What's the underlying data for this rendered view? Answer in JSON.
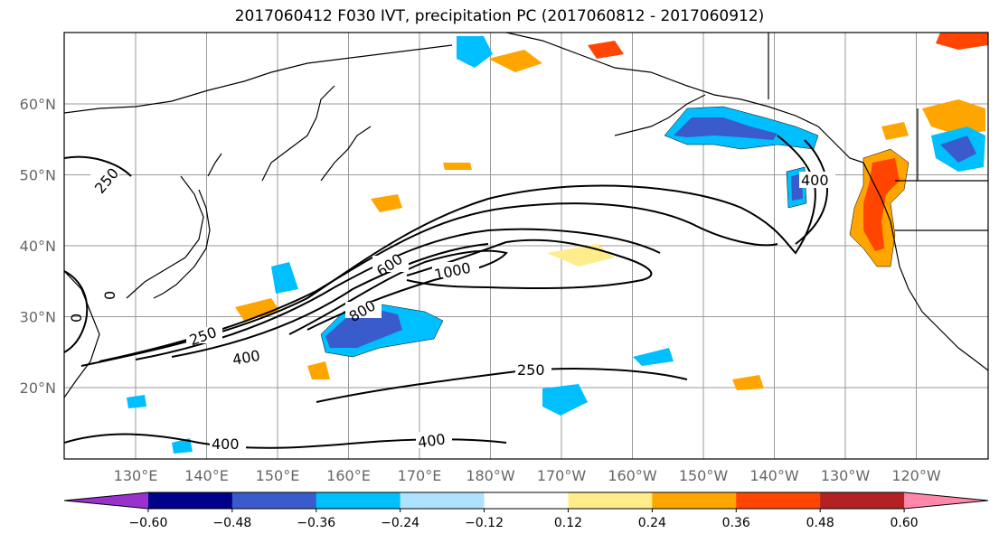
{
  "title": "2017060412 F030 IVT, precipitation PC (2017060812 - 2017060912)",
  "map": {
    "lon_labels": [
      "130°E",
      "140°E",
      "150°E",
      "160°E",
      "170°E",
      "180°W",
      "170°W",
      "160°W",
      "150°W",
      "140°W",
      "130°W",
      "120°W"
    ],
    "lat_labels": [
      "60°N",
      "50°N",
      "40°N",
      "30°N",
      "20°N"
    ]
  },
  "contours": {
    "labels": [
      "250",
      "400",
      "600",
      "800",
      "1000",
      "250",
      "400",
      "400",
      "400",
      "250",
      "0",
      "0"
    ]
  },
  "colorbar": {
    "ticks": [
      "−0.60",
      "−0.48",
      "−0.36",
      "−0.24",
      "−0.12",
      "0.12",
      "0.24",
      "0.36",
      "0.48",
      "0.60"
    ],
    "colors": [
      "#9932cc",
      "#00008b",
      "#3a5bcc",
      "#00bfff",
      "#aee3ff",
      "#ffffff",
      "#ffec8b",
      "#ffa500",
      "#ff4500",
      "#b22222",
      "#ff88aa"
    ]
  }
}
